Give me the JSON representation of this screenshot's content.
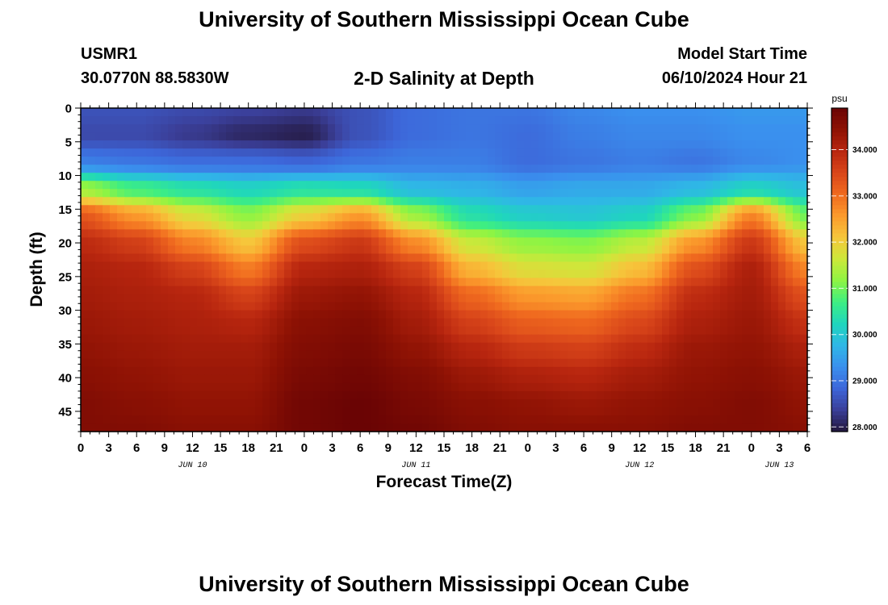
{
  "header": {
    "title": "University of Southern Mississippi Ocean Cube",
    "station_id": "USMR1",
    "coordinates": "30.0770N  88.5830W",
    "plot_title": "2-D Salinity at Depth",
    "model_start_label": "Model Start Time",
    "model_start_value": "06/10/2024 Hour 21"
  },
  "footer": {
    "title": "University of Southern Mississippi Ocean Cube"
  },
  "chart_data": {
    "type": "heatmap",
    "title": "2-D Salinity at Depth",
    "xlabel": "Forecast Time(Z)",
    "ylabel": "Depth (ft)",
    "x_tick_labels": [
      "0",
      "3",
      "6",
      "9",
      "12",
      "15",
      "18",
      "21",
      "0",
      "3",
      "6",
      "9",
      "12",
      "15",
      "18",
      "21",
      "0",
      "3",
      "6",
      "9",
      "12",
      "15",
      "18",
      "21",
      "0",
      "3",
      "6"
    ],
    "date_labels": [
      "JUN 10",
      "JUN 11",
      "JUN 12",
      "JUN 13"
    ],
    "date_label_hours": [
      12,
      36,
      60,
      75
    ],
    "y_ticks": [
      0,
      5,
      10,
      15,
      20,
      25,
      30,
      35,
      40,
      45
    ],
    "ylim": [
      0,
      48
    ],
    "y_inverted": true,
    "x_hours": [
      0,
      6,
      12,
      18,
      24,
      30,
      36,
      42,
      48,
      54,
      60,
      66,
      72,
      78
    ],
    "depths": [
      0,
      4,
      8,
      12,
      16,
      20,
      24,
      28,
      32,
      36,
      40,
      44,
      48
    ],
    "salinity": [
      [
        28.6,
        28.6,
        28.5,
        28.4,
        28.3,
        28.6,
        28.9,
        29.0,
        29.0,
        29.2,
        29.3,
        29.3,
        29.4,
        29.4
      ],
      [
        28.5,
        28.5,
        28.3,
        28.1,
        28.0,
        28.6,
        28.9,
        29.0,
        28.9,
        29.1,
        29.2,
        29.2,
        29.3,
        29.3
      ],
      [
        29.1,
        29.0,
        28.9,
        28.9,
        28.8,
        29.0,
        29.1,
        29.1,
        28.9,
        29.0,
        29.1,
        29.0,
        29.2,
        29.3
      ],
      [
        31.3,
        30.7,
        30.4,
        30.2,
        30.4,
        30.3,
        29.8,
        29.7,
        29.5,
        29.6,
        29.6,
        29.8,
        30.2,
        29.9
      ],
      [
        33.3,
        32.6,
        31.8,
        31.2,
        32.0,
        32.6,
        31.3,
        30.4,
        30.1,
        30.0,
        30.2,
        31.1,
        32.8,
        31.0
      ],
      [
        33.9,
        33.6,
        32.8,
        32.1,
        33.4,
        33.7,
        32.7,
        31.6,
        31.2,
        31.1,
        31.5,
        32.6,
        33.7,
        32.1
      ],
      [
        34.1,
        34.0,
        33.6,
        32.9,
        34.0,
        34.1,
        33.6,
        32.3,
        31.8,
        31.7,
        32.2,
        33.4,
        34.1,
        32.8
      ],
      [
        34.2,
        34.1,
        34.0,
        33.6,
        34.3,
        34.4,
        34.0,
        33.1,
        32.6,
        32.5,
        33.0,
        33.9,
        34.2,
        33.4
      ],
      [
        34.3,
        34.2,
        34.1,
        34.0,
        34.5,
        34.6,
        34.2,
        33.6,
        33.2,
        33.1,
        33.5,
        34.1,
        34.3,
        33.8
      ],
      [
        34.4,
        34.3,
        34.2,
        34.2,
        34.6,
        34.7,
        34.4,
        34.0,
        33.7,
        33.6,
        33.9,
        34.3,
        34.4,
        34.1
      ],
      [
        34.5,
        34.4,
        34.3,
        34.3,
        34.7,
        34.8,
        34.6,
        34.3,
        34.1,
        34.0,
        34.2,
        34.4,
        34.5,
        34.3
      ],
      [
        34.6,
        34.5,
        34.4,
        34.4,
        34.8,
        34.9,
        34.7,
        34.5,
        34.4,
        34.3,
        34.4,
        34.5,
        34.6,
        34.4
      ],
      [
        34.6,
        34.6,
        34.5,
        34.5,
        34.8,
        34.9,
        34.8,
        34.6,
        34.5,
        34.5,
        34.5,
        34.6,
        34.6,
        34.5
      ]
    ],
    "colorbar": {
      "unit": "psu",
      "min": 27.9,
      "max": 34.9,
      "tick_labels": [
        "28.000",
        "29.000",
        "30.000",
        "31.000",
        "32.000",
        "33.000",
        "34.000"
      ]
    },
    "colormap": [
      "#23173c",
      "#3b3f99",
      "#3d66d9",
      "#3a90ee",
      "#2fb7e6",
      "#1fd6bd",
      "#3eee82",
      "#8ef443",
      "#cde83a",
      "#f6c63b",
      "#fb9a2c",
      "#f06a1f",
      "#d9461a",
      "#b8260f",
      "#8e1204",
      "#6a0404"
    ]
  }
}
